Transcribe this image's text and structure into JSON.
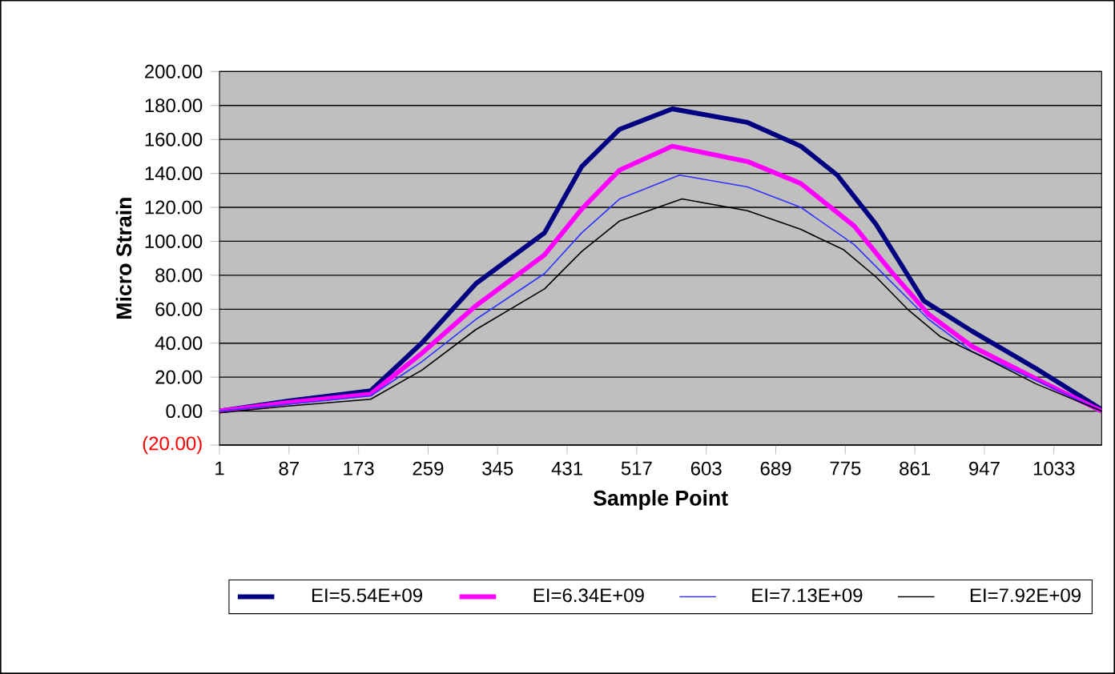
{
  "chart_data": {
    "type": "line",
    "xlabel": "Sample Point",
    "ylabel": "Micro Strain",
    "xlim": [
      1,
      1092
    ],
    "xticks": [
      1,
      87,
      173,
      259,
      345,
      431,
      517,
      603,
      689,
      775,
      861,
      947,
      1033
    ],
    "ylim": [
      -20,
      200
    ],
    "yticks": [
      {
        "value": -20,
        "label": "(20.00)"
      },
      {
        "value": 0,
        "label": "0.00"
      },
      {
        "value": 20,
        "label": "20.00"
      },
      {
        "value": 40,
        "label": "40.00"
      },
      {
        "value": 60,
        "label": "60.00"
      },
      {
        "value": 80,
        "label": "80.00"
      },
      {
        "value": 100,
        "label": "100.00"
      },
      {
        "value": 120,
        "label": "120.00"
      },
      {
        "value": 140,
        "label": "140.00"
      },
      {
        "value": 160,
        "label": "160.00"
      },
      {
        "value": 180,
        "label": "180.00"
      },
      {
        "value": 200,
        "label": "200.00"
      }
    ],
    "grid": "y",
    "legend": "bottom",
    "marker": "none",
    "line_style": "solid",
    "series": [
      {
        "name": "EI=5.54E+09",
        "color": "#000080",
        "x": [
          1,
          86,
          188,
          251,
          318,
          403,
          449,
          496,
          561,
          654,
          720,
          765,
          813,
          872,
          932,
          1011,
          1092
        ],
        "values": [
          0,
          6,
          12,
          40,
          75,
          105,
          144,
          166,
          178,
          170,
          156,
          139,
          110,
          65,
          47,
          25,
          1
        ]
      },
      {
        "name": "EI=6.34E+09",
        "color": "#ff00ff",
        "x": [
          1,
          86,
          188,
          251,
          318,
          403,
          449,
          496,
          561,
          654,
          720,
          786,
          832,
          878,
          932,
          1011,
          1092
        ],
        "values": [
          0,
          5,
          10,
          34,
          62,
          92,
          119,
          142,
          156,
          147,
          134,
          109,
          82,
          57,
          38,
          19,
          0
        ]
      },
      {
        "name": "EI=7.13E+09",
        "color": "#3333ff",
        "x": [
          1,
          86,
          188,
          251,
          318,
          403,
          449,
          496,
          570,
          654,
          720,
          786,
          832,
          878,
          932,
          1011,
          1092
        ],
        "values": [
          0,
          4,
          9,
          29,
          54,
          81,
          105,
          125,
          139,
          132,
          120,
          98,
          76,
          54,
          35,
          18,
          0
        ]
      },
      {
        "name": "EI=7.92E+09",
        "color": "#000000",
        "x": [
          1,
          86,
          188,
          251,
          318,
          403,
          449,
          496,
          573,
          654,
          720,
          773,
          813,
          852,
          892,
          945,
          1011,
          1092
        ],
        "values": [
          -1,
          3,
          7,
          24,
          48,
          72,
          94,
          112,
          125,
          118,
          107,
          95,
          79,
          60,
          44,
          32,
          16,
          0
        ]
      }
    ]
  }
}
